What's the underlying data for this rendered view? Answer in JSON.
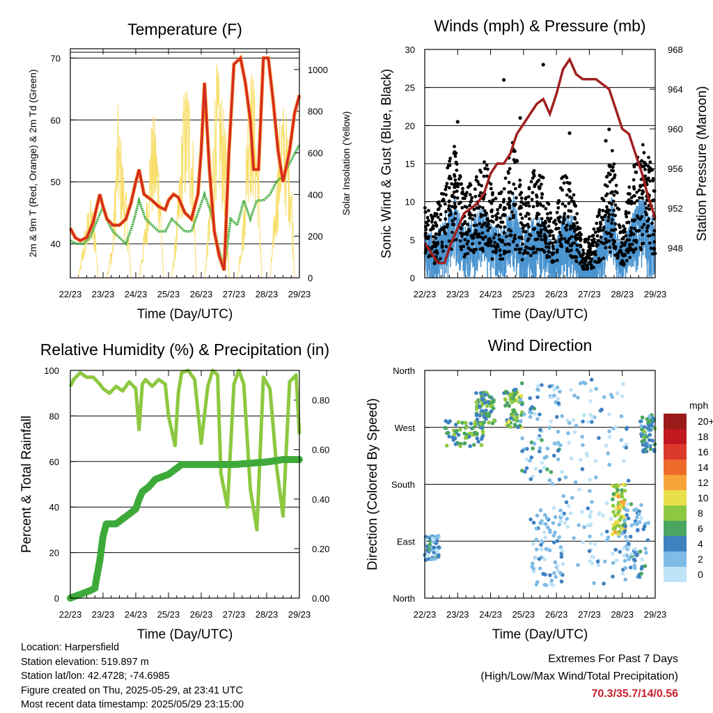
{
  "station": {
    "location": "Location: Harpersfield",
    "elevation": "Station elevation: 519.897 m",
    "latlon": "Station lat/lon: 42.4728; -74.6985",
    "created": "Figure created on Thu, 2025-05-29, at 23:41 UTC",
    "latest": "Most recent data timestamp: 2025/05/29 23:15:00"
  },
  "extremes": {
    "title": "Extremes For Past 7 Days",
    "subtitle": "(High/Low/Max Wind/Total Precipitation)",
    "values": "70.3/35.7/14/0.56"
  },
  "colors": {
    "temp_red": "#d42a22",
    "temp_orange": "#f28a1e",
    "dewpoint_green": "#3eaa3a",
    "insolation_yellow": "#f8de6a",
    "gust_black": "#000000",
    "wind_blue": "#4a94d0",
    "pressure_maroon": "#a01f1f",
    "rh_lightgreen": "#8dc840",
    "precip_green": "#3eaa3a"
  },
  "chart_data": [
    {
      "id": "temperature",
      "type": "line",
      "title": "Temperature (F)",
      "xlabel": "Time (Day/UTC)",
      "ylabel": "2m & 9m T (Red, Orange) & 2m Td (Green)",
      "y2label": "Solar Insolation (Yellow)",
      "x_ticks": [
        "22/23",
        "23/23",
        "24/23",
        "25/23",
        "26/23",
        "27/23",
        "28/23",
        "29/23"
      ],
      "ylim": [
        34.5,
        71.5
      ],
      "y_ticks": [
        40,
        50,
        60,
        70
      ],
      "y2lim": [
        0,
        1100
      ],
      "y2_ticks": [
        0,
        200,
        400,
        600,
        800,
        1000
      ],
      "grid_y": [
        40,
        50,
        60,
        70
      ],
      "x_unit": "days since 22/23",
      "series": [
        {
          "name": "2m T",
          "color": "#d42a22",
          "x": [
            0,
            0.15,
            0.3,
            0.5,
            0.7,
            0.9,
            1.0,
            1.12,
            1.3,
            1.5,
            1.7,
            1.85,
            2.0,
            2.1,
            2.25,
            2.5,
            2.7,
            2.9,
            3.0,
            3.15,
            3.3,
            3.5,
            3.7,
            3.9,
            4.0,
            4.1,
            4.25,
            4.4,
            4.55,
            4.7,
            4.85,
            5.0,
            5.2,
            5.35,
            5.5,
            5.6,
            5.75,
            5.9,
            6.05,
            6.2,
            6.35,
            6.5,
            6.7,
            6.85,
            7.0
          ],
          "y": [
            42.5,
            41,
            40.5,
            41,
            43.5,
            48,
            46,
            44,
            43,
            43,
            44,
            46.5,
            50,
            52,
            48,
            47,
            46,
            45.5,
            47,
            48,
            47.5,
            45,
            44,
            48,
            55,
            66,
            52,
            42,
            38,
            35.7,
            55,
            69,
            70,
            66,
            60,
            52,
            52,
            70,
            70,
            63,
            55,
            50,
            55,
            61,
            64
          ]
        },
        {
          "name": "2m Td",
          "color": "#3eaa3a",
          "x": [
            0,
            0.2,
            0.4,
            0.6,
            0.8,
            1.0,
            1.1,
            1.3,
            1.5,
            1.7,
            1.9,
            2.1,
            2.3,
            2.5,
            2.7,
            2.9,
            3.1,
            3.3,
            3.5,
            3.7,
            3.9,
            4.1,
            4.3,
            4.5,
            4.7,
            4.9,
            5.1,
            5.3,
            5.5,
            5.7,
            5.9,
            6.1,
            6.3,
            6.5,
            6.7,
            6.9,
            7.0
          ],
          "y": [
            40.5,
            40,
            40,
            41,
            43.5,
            46,
            44,
            42,
            41,
            40,
            43,
            47,
            44,
            43,
            42,
            42,
            44,
            43,
            42,
            42,
            45,
            48,
            45,
            40,
            36,
            44,
            43,
            47,
            44,
            47,
            47,
            48,
            50,
            51,
            53,
            55,
            56
          ]
        },
        {
          "name": "Solar Insolation",
          "color": "#f8de6a",
          "x": [
            0,
            0.25,
            0.45,
            0.6,
            0.75,
            0.85,
            1.1,
            1.3,
            1.45,
            1.6,
            1.75,
            1.85,
            2.1,
            2.3,
            2.45,
            2.6,
            2.75,
            2.85,
            3.1,
            3.3,
            3.45,
            3.6,
            3.75,
            3.85,
            4.1,
            4.3,
            4.45,
            4.6,
            4.75,
            4.85,
            5.1,
            5.3,
            5.45,
            5.6,
            5.75,
            5.85,
            6.1,
            6.3,
            6.45,
            6.6,
            6.75,
            6.85,
            7.0
          ],
          "y": [
            0,
            0,
            250,
            400,
            300,
            0,
            0,
            200,
            850,
            600,
            350,
            0,
            0,
            300,
            750,
            800,
            500,
            0,
            0,
            400,
            900,
            1000,
            700,
            0,
            0,
            500,
            1060,
            950,
            700,
            0,
            0,
            350,
            1050,
            1000,
            600,
            0,
            0,
            500,
            900,
            800,
            600,
            0,
            0
          ]
        }
      ]
    },
    {
      "id": "winds",
      "type": "scatter",
      "title": "Winds (mph) & Pressure (mb)",
      "xlabel": "Time (Day/UTC)",
      "ylabel": "Sonic Wind & Gust (Blue, Black)",
      "y2label": "Station Pressure (Maroon)",
      "x_ticks": [
        "22/23",
        "23/23",
        "24/23",
        "25/23",
        "26/23",
        "27/23",
        "28/23",
        "29/23"
      ],
      "ylim": [
        0,
        30
      ],
      "y_ticks": [
        0,
        5,
        10,
        15,
        20,
        25,
        30
      ],
      "y2lim": [
        945,
        968
      ],
      "y2_ticks": [
        948,
        952,
        956,
        960,
        964,
        968
      ],
      "grid_y": [
        5,
        10,
        15,
        20,
        25
      ],
      "x_unit": "days since 22/23",
      "gust_envelope": {
        "x": [
          0,
          0.3,
          0.6,
          0.9,
          1.2,
          1.5,
          1.8,
          2.1,
          2.4,
          2.7,
          3.0,
          3.3,
          3.6,
          3.9,
          4.2,
          4.5,
          4.8,
          5.1,
          5.4,
          5.7,
          6.0,
          6.3,
          6.6,
          6.9,
          7.0
        ],
        "y": [
          8,
          7,
          11,
          15,
          9,
          12,
          14,
          9,
          10,
          16,
          8,
          12,
          11,
          6,
          12,
          10,
          4,
          5,
          9,
          14,
          5,
          12,
          15,
          13,
          10
        ]
      },
      "wind_envelope": {
        "x": [
          0,
          0.3,
          0.6,
          0.9,
          1.2,
          1.5,
          1.8,
          2.1,
          2.4,
          2.7,
          3.0,
          3.3,
          3.6,
          3.9,
          4.2,
          4.5,
          4.8,
          5.1,
          5.4,
          5.7,
          6.0,
          6.3,
          6.6,
          6.9,
          7.0
        ],
        "y": [
          5,
          4,
          6,
          8,
          5,
          6,
          7,
          5,
          5,
          8,
          4,
          6,
          6,
          3,
          6,
          6,
          2,
          2,
          5,
          8,
          3,
          6,
          8,
          6,
          5
        ]
      },
      "pressure": {
        "name": "Station Pressure",
        "color": "#a01f1f",
        "x": [
          0,
          0.2,
          0.4,
          0.6,
          0.8,
          1.0,
          1.2,
          1.4,
          1.6,
          1.8,
          2.0,
          2.2,
          2.4,
          2.6,
          2.8,
          3.0,
          3.2,
          3.4,
          3.6,
          3.8,
          4.0,
          4.2,
          4.4,
          4.6,
          4.8,
          5.0,
          5.2,
          5.4,
          5.6,
          5.8,
          6.0,
          6.2,
          6.4,
          6.6,
          6.8,
          7.0
        ],
        "y": [
          948.5,
          947.5,
          946.5,
          946.5,
          948.5,
          950,
          951.5,
          952,
          952.5,
          953.5,
          955.5,
          956.5,
          956.5,
          957.5,
          959.5,
          960.5,
          961.5,
          962.5,
          963,
          961.5,
          963.5,
          966,
          967,
          965.5,
          965,
          965,
          965,
          964.5,
          964,
          962,
          960,
          959.5,
          957.5,
          955.5,
          953,
          951
        ]
      }
    },
    {
      "id": "humidity",
      "type": "line",
      "title": "Relative Humidity (%) & Precipitation (in)",
      "xlabel": "Time (Day/UTC)",
      "ylabel": "Percent & Total Rainfall",
      "x_ticks": [
        "22/23",
        "23/23",
        "24/23",
        "25/23",
        "26/23",
        "27/23",
        "28/23",
        "29/23"
      ],
      "ylim": [
        0,
        100
      ],
      "y_ticks": [
        0,
        20,
        40,
        60,
        80,
        100
      ],
      "y2lim": [
        0,
        0.92
      ],
      "y2_ticks": [
        "0.00",
        "0.20",
        "0.40",
        "0.60",
        "0.80"
      ],
      "grid_y": [
        20,
        40,
        60,
        80
      ],
      "x_unit": "days since 22/23",
      "series": [
        {
          "name": "RH",
          "color": "#8dc840",
          "x": [
            0,
            0.1,
            0.3,
            0.5,
            0.7,
            0.9,
            1.0,
            1.2,
            1.4,
            1.6,
            1.8,
            2.0,
            2.1,
            2.2,
            2.3,
            2.5,
            2.7,
            2.9,
            3.0,
            3.2,
            3.3,
            3.4,
            3.6,
            3.8,
            4.0,
            4.2,
            4.35,
            4.5,
            4.6,
            4.8,
            5.0,
            5.15,
            5.3,
            5.5,
            5.7,
            5.9,
            6.1,
            6.3,
            6.5,
            6.7,
            6.9,
            7.0
          ],
          "y": [
            93,
            96,
            99,
            97,
            97,
            94,
            92,
            90,
            93,
            91,
            95,
            92,
            74,
            94,
            96,
            93,
            96,
            94,
            80,
            67,
            90,
            99,
            100,
            96,
            68,
            93,
            100,
            98,
            55,
            40,
            94,
            100,
            94,
            48,
            30,
            97,
            92,
            58,
            36,
            95,
            98,
            72
          ]
        },
        {
          "name": "Total Precipitation",
          "color": "#3eaa3a",
          "x": [
            0,
            0.2,
            0.4,
            0.6,
            0.75,
            0.8,
            0.9,
            1.0,
            1.1,
            1.2,
            1.4,
            1.6,
            1.8,
            2.0,
            2.1,
            2.2,
            2.4,
            2.6,
            2.8,
            3.0,
            3.2,
            3.4,
            3.6,
            3.8,
            4.0,
            5.0,
            6.0,
            6.5,
            7.0
          ],
          "y": [
            0.0,
            0.01,
            0.02,
            0.03,
            0.04,
            0.08,
            0.15,
            0.25,
            0.3,
            0.3,
            0.3,
            0.32,
            0.34,
            0.36,
            0.4,
            0.43,
            0.45,
            0.48,
            0.49,
            0.5,
            0.52,
            0.54,
            0.54,
            0.54,
            0.54,
            0.54,
            0.55,
            0.56,
            0.56
          ]
        }
      ]
    },
    {
      "id": "winddir",
      "type": "scatter",
      "title": "Wind Direction",
      "xlabel": "Time (Day/UTC)",
      "ylabel": "Direction (Colored By Speed)",
      "x_ticks": [
        "22/23",
        "23/23",
        "24/23",
        "25/23",
        "26/23",
        "27/23",
        "28/23",
        "29/23"
      ],
      "ylim": [
        0,
        360
      ],
      "y_ticks": [
        "North",
        "East",
        "South",
        "West",
        "North"
      ],
      "x_unit": "days since 22/23",
      "legend": {
        "title": "mph",
        "labels": [
          "20+",
          "18",
          "16",
          "14",
          "12",
          "10",
          "8",
          "6",
          "4",
          "2",
          "0"
        ],
        "colors": [
          "#9b1b1b",
          "#c1191f",
          "#db3a2b",
          "#ee6a2a",
          "#f6a43a",
          "#e8df4a",
          "#8dc843",
          "#4aa561",
          "#3f82c1",
          "#7fbbe5",
          "#bfe3f6"
        ]
      },
      "clusters": [
        {
          "x": 0.2,
          "dir": 80,
          "dx": 0.25,
          "dd": 20,
          "speed": 3
        },
        {
          "x": 1.2,
          "dir": 260,
          "dx": 0.6,
          "dd": 20,
          "speed": 6
        },
        {
          "x": 1.85,
          "dir": 300,
          "dx": 0.3,
          "dd": 25,
          "speed": 6
        },
        {
          "x": 2.7,
          "dir": 300,
          "dx": 0.3,
          "dd": 30,
          "speed": 7
        },
        {
          "x": 3.5,
          "dir": 260,
          "dx": 0.6,
          "dd": 80,
          "speed": 3
        },
        {
          "x": 3.7,
          "dir": 80,
          "dx": 0.5,
          "dd": 60,
          "speed": 2
        },
        {
          "x": 4.5,
          "dir": 200,
          "dx": 0.6,
          "dd": 150,
          "speed": 1
        },
        {
          "x": 5.6,
          "dir": 180,
          "dx": 0.6,
          "dd": 160,
          "speed": 1
        },
        {
          "x": 5.9,
          "dir": 140,
          "dx": 0.2,
          "dd": 40,
          "speed": 9
        },
        {
          "x": 6.4,
          "dir": 90,
          "dx": 0.4,
          "dd": 60,
          "speed": 3
        },
        {
          "x": 6.8,
          "dir": 260,
          "dx": 0.25,
          "dd": 30,
          "speed": 5
        }
      ]
    }
  ]
}
